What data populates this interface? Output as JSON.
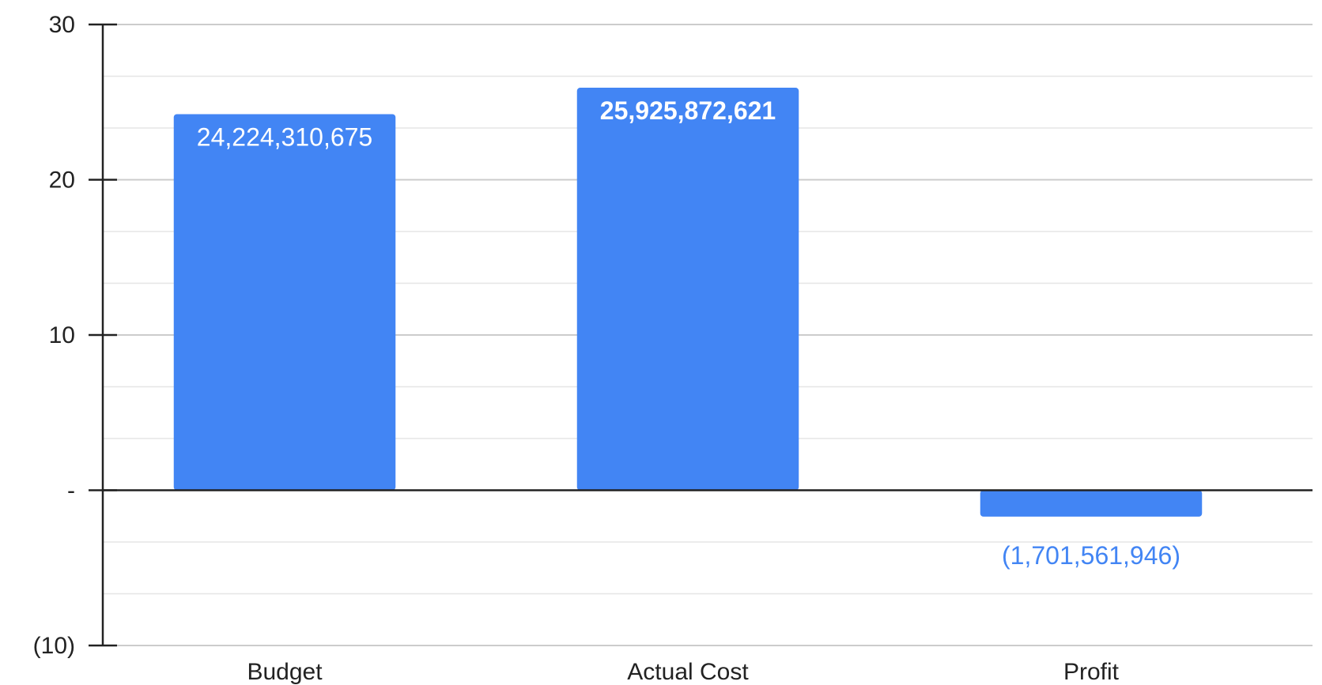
{
  "chart_data": {
    "type": "bar",
    "title": "",
    "xlabel": "",
    "ylabel": "",
    "categories": [
      "Budget",
      "Actual Cost",
      "Profit"
    ],
    "series": [
      {
        "values": [
          24.22431,
          25.92587,
          -1.70156
        ],
        "data_labels": [
          "24,224,310,675",
          "25,925,872,621",
          "(1,701,561,946)"
        ]
      }
    ],
    "ylim": [
      -10,
      30
    ],
    "y_ticks": [
      -10,
      0,
      10,
      20,
      30
    ],
    "y_tick_labels": [
      "(10)",
      "-",
      "10",
      "20",
      "30"
    ],
    "minor_gridlines": true,
    "legend": "none",
    "colors": {
      "bar": "#4285f4",
      "label_inside": "#ffffff",
      "label_outside": "#4285f4",
      "major_grid": "#cccccc",
      "minor_grid": "#e6e6e6",
      "axis": "#222222"
    }
  }
}
